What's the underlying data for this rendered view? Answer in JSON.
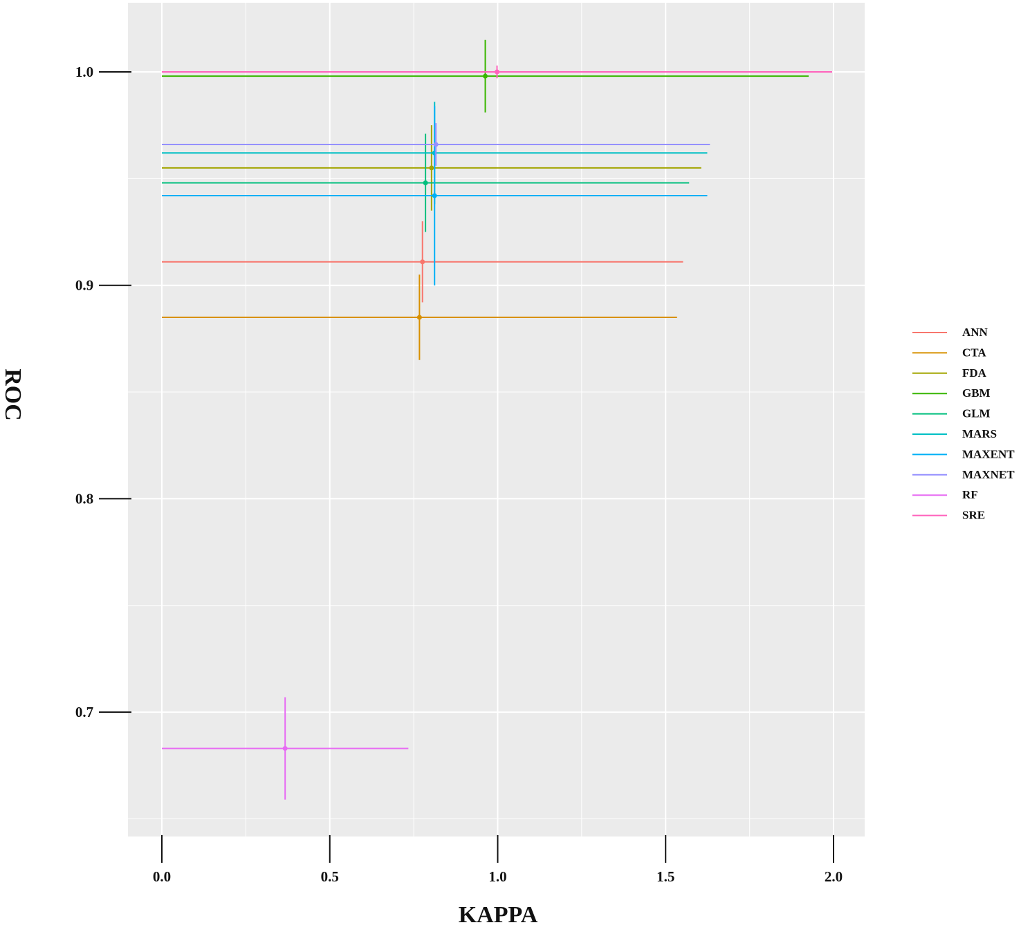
{
  "chart_data": {
    "type": "scatter",
    "title": "",
    "xlabel": "KAPPA",
    "ylabel": "ROC",
    "xlim": [
      -0.1,
      2.1
    ],
    "ylim": [
      0.634,
      1.032
    ],
    "x_ticks": [
      0.0,
      0.5,
      1.0,
      1.5,
      2.0
    ],
    "x_tick_labels": [
      "0.0",
      "0.5",
      "1.0",
      "1.5",
      "2.0"
    ],
    "y_ticks": [
      0.7,
      0.8,
      0.9,
      1.0
    ],
    "y_tick_labels": [
      "0.7",
      "0.8",
      "0.9",
      "1.0"
    ],
    "grid": true,
    "legend_position": "right",
    "series": [
      {
        "name": "ANN",
        "color": "#F8766D",
        "x": 0.776,
        "y": 0.911,
        "x_err": 0.776,
        "y_err": 0.019
      },
      {
        "name": "CTA",
        "color": "#D89000",
        "x": 0.767,
        "y": 0.885,
        "x_err": 0.767,
        "y_err": 0.02
      },
      {
        "name": "FDA",
        "color": "#A3A500",
        "x": 0.803,
        "y": 0.955,
        "x_err": 0.803,
        "y_err": 0.02
      },
      {
        "name": "GBM",
        "color": "#39B600",
        "x": 0.963,
        "y": 0.998,
        "x_err": 0.963,
        "y_err": 0.017
      },
      {
        "name": "GLM",
        "color": "#00BF7D",
        "x": 0.785,
        "y": 0.948,
        "x_err": 0.785,
        "y_err": 0.023
      },
      {
        "name": "MARS",
        "color": "#00BFC4",
        "x": 0.812,
        "y": 0.962,
        "x_err": 0.812,
        "y_err": 0.024
      },
      {
        "name": "MAXENT",
        "color": "#00B0F6",
        "x": 0.812,
        "y": 0.942,
        "x_err": 0.812,
        "y_err": 0.042
      },
      {
        "name": "MAXNET",
        "color": "#9590FF",
        "x": 0.816,
        "y": 0.966,
        "x_err": 0.816,
        "y_err": 0.01
      },
      {
        "name": "RF",
        "color": "#E76BF3",
        "x": 0.367,
        "y": 0.683,
        "x_err": 0.367,
        "y_err": 0.024
      },
      {
        "name": "SRE",
        "color": "#FF62BC",
        "x": 0.998,
        "y": 1.0,
        "x_err": 0.998,
        "y_err": 0.003
      }
    ]
  }
}
